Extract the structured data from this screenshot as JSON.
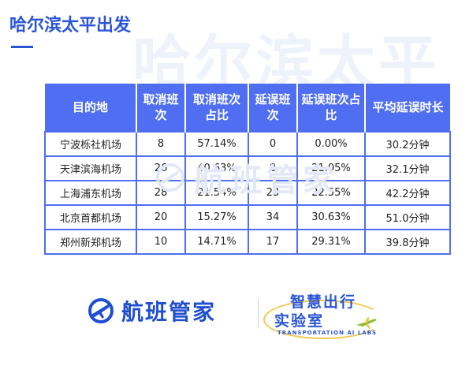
{
  "title": "哈尔滨太平出发",
  "watermark_top": "哈尔滨太平",
  "watermark_mid": "航班管家",
  "table": {
    "headers": [
      "目的地",
      "取消班次",
      "取消班次占比",
      "延误班次",
      "延误班次占比",
      "平均延误时长"
    ],
    "rows": [
      [
        "宁波栎社机场",
        "8",
        "57.14%",
        "0",
        "0.00%",
        "30.2分钟"
      ],
      [
        "天津滨海机场",
        "26",
        "40.63%",
        "8",
        "21.05%",
        "32.1分钟"
      ],
      [
        "上海浦东机场",
        "28",
        "21.54%",
        "23",
        "22.55%",
        "42.2分钟"
      ],
      [
        "北京首都机场",
        "20",
        "15.27%",
        "34",
        "30.63%",
        "51.0分钟"
      ],
      [
        "郑州新郑机场",
        "10",
        "14.71%",
        "17",
        "29.31%",
        "39.8分钟"
      ]
    ]
  },
  "footer": {
    "brand": "航班管家",
    "lab_line1": "智慧出行",
    "lab_line2": "实验室",
    "lab_sub": "TRANSPORTATION AI LABS",
    "brand_icon": "airplane-globe-icon",
    "lab_icon": "airplane-icon"
  },
  "colors": {
    "accent": "#2a55d6",
    "header_bg": "#4f6ef2",
    "lab_yellow": "#f3c84d"
  }
}
